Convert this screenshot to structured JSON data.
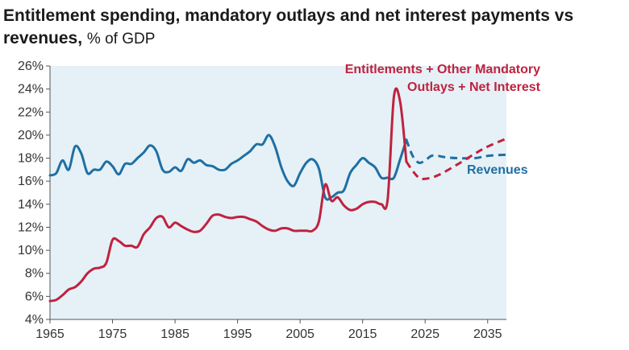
{
  "chart_data": {
    "type": "line",
    "title": "Entitlement spending, mandatory outlays and net interest payments vs revenues,",
    "title_unit": "% of GDP",
    "xlabel": "",
    "ylabel": "",
    "xlim": [
      1965,
      2038
    ],
    "ylim": [
      4,
      26
    ],
    "x_ticks": [
      1965,
      1975,
      1985,
      1995,
      2005,
      2015,
      2025,
      2035
    ],
    "y_ticks": [
      4,
      6,
      8,
      10,
      12,
      14,
      16,
      18,
      20,
      22,
      24,
      26
    ],
    "y_tick_suffix": "%",
    "grid": false,
    "plot_background": "#e5f1f6",
    "series": [
      {
        "name": "Revenues",
        "label": "Revenues",
        "color": "#1f6fa3",
        "points": [
          [
            1965,
            16.5
          ],
          [
            1966,
            16.7
          ],
          [
            1967,
            17.8
          ],
          [
            1968,
            17.0
          ],
          [
            1969,
            19.0
          ],
          [
            1970,
            18.4
          ],
          [
            1971,
            16.7
          ],
          [
            1972,
            17.0
          ],
          [
            1973,
            17.0
          ],
          [
            1974,
            17.7
          ],
          [
            1975,
            17.3
          ],
          [
            1976,
            16.6
          ],
          [
            1977,
            17.5
          ],
          [
            1978,
            17.5
          ],
          [
            1979,
            18.0
          ],
          [
            1980,
            18.5
          ],
          [
            1981,
            19.1
          ],
          [
            1982,
            18.6
          ],
          [
            1983,
            17.0
          ],
          [
            1984,
            16.8
          ],
          [
            1985,
            17.2
          ],
          [
            1986,
            16.9
          ],
          [
            1987,
            17.9
          ],
          [
            1988,
            17.6
          ],
          [
            1989,
            17.8
          ],
          [
            1990,
            17.4
          ],
          [
            1991,
            17.3
          ],
          [
            1992,
            17.0
          ],
          [
            1993,
            17.0
          ],
          [
            1994,
            17.5
          ],
          [
            1995,
            17.8
          ],
          [
            1996,
            18.2
          ],
          [
            1997,
            18.6
          ],
          [
            1998,
            19.2
          ],
          [
            1999,
            19.2
          ],
          [
            2000,
            20.0
          ],
          [
            2001,
            19.0
          ],
          [
            2002,
            17.2
          ],
          [
            2003,
            16.0
          ],
          [
            2004,
            15.6
          ],
          [
            2005,
            16.7
          ],
          [
            2006,
            17.6
          ],
          [
            2007,
            17.9
          ],
          [
            2008,
            17.1
          ],
          [
            2009,
            14.6
          ],
          [
            2010,
            14.6
          ],
          [
            2011,
            15.0
          ],
          [
            2012,
            15.2
          ],
          [
            2013,
            16.7
          ],
          [
            2014,
            17.4
          ],
          [
            2015,
            18.0
          ],
          [
            2016,
            17.6
          ],
          [
            2017,
            17.2
          ],
          [
            2018,
            16.3
          ],
          [
            2019,
            16.3
          ],
          [
            2020,
            16.3
          ],
          [
            2021,
            17.9
          ],
          [
            2022,
            19.6
          ]
        ],
        "projection": [
          [
            2022,
            19.6
          ],
          [
            2023,
            18.2
          ],
          [
            2024,
            17.6
          ],
          [
            2025,
            17.8
          ],
          [
            2026,
            18.2
          ],
          [
            2027,
            18.2
          ],
          [
            2028,
            18.1
          ],
          [
            2030,
            18.0
          ],
          [
            2033,
            18.0
          ],
          [
            2035,
            18.2
          ],
          [
            2038,
            18.3
          ]
        ]
      },
      {
        "name": "Entitlements + Other Mandatory Outlays + Net Interest",
        "label_lines": [
          "Entitlements + Other Mandatory",
          "Outlays + Net Interest"
        ],
        "color": "#c0223f",
        "points": [
          [
            1965,
            5.6
          ],
          [
            1966,
            5.7
          ],
          [
            1967,
            6.1
          ],
          [
            1968,
            6.6
          ],
          [
            1969,
            6.8
          ],
          [
            1970,
            7.3
          ],
          [
            1971,
            8.0
          ],
          [
            1972,
            8.4
          ],
          [
            1973,
            8.5
          ],
          [
            1974,
            8.9
          ],
          [
            1975,
            10.9
          ],
          [
            1976,
            10.8
          ],
          [
            1977,
            10.4
          ],
          [
            1978,
            10.4
          ],
          [
            1979,
            10.3
          ],
          [
            1980,
            11.4
          ],
          [
            1981,
            12.0
          ],
          [
            1982,
            12.8
          ],
          [
            1983,
            12.9
          ],
          [
            1984,
            12.0
          ],
          [
            1985,
            12.4
          ],
          [
            1986,
            12.1
          ],
          [
            1987,
            11.8
          ],
          [
            1988,
            11.6
          ],
          [
            1989,
            11.7
          ],
          [
            1990,
            12.3
          ],
          [
            1991,
            13.0
          ],
          [
            1992,
            13.1
          ],
          [
            1993,
            12.9
          ],
          [
            1994,
            12.8
          ],
          [
            1995,
            12.9
          ],
          [
            1996,
            12.9
          ],
          [
            1997,
            12.7
          ],
          [
            1998,
            12.5
          ],
          [
            1999,
            12.1
          ],
          [
            2000,
            11.8
          ],
          [
            2001,
            11.7
          ],
          [
            2002,
            11.9
          ],
          [
            2003,
            11.9
          ],
          [
            2004,
            11.7
          ],
          [
            2005,
            11.7
          ],
          [
            2006,
            11.7
          ],
          [
            2007,
            11.7
          ],
          [
            2008,
            12.5
          ],
          [
            2009,
            15.7
          ],
          [
            2010,
            14.3
          ],
          [
            2011,
            14.6
          ],
          [
            2012,
            13.9
          ],
          [
            2013,
            13.5
          ],
          [
            2014,
            13.6
          ],
          [
            2015,
            14.0
          ],
          [
            2016,
            14.2
          ],
          [
            2017,
            14.2
          ],
          [
            2018,
            14.0
          ],
          [
            2019,
            14.4
          ],
          [
            2020,
            23.3
          ],
          [
            2021,
            22.9
          ],
          [
            2022,
            17.7
          ]
        ],
        "projection": [
          [
            2022,
            17.7
          ],
          [
            2023,
            16.9
          ],
          [
            2024,
            16.3
          ],
          [
            2025,
            16.2
          ],
          [
            2027,
            16.5
          ],
          [
            2030,
            17.4
          ],
          [
            2033,
            18.4
          ],
          [
            2035,
            19.0
          ],
          [
            2038,
            19.7
          ]
        ]
      }
    ]
  }
}
